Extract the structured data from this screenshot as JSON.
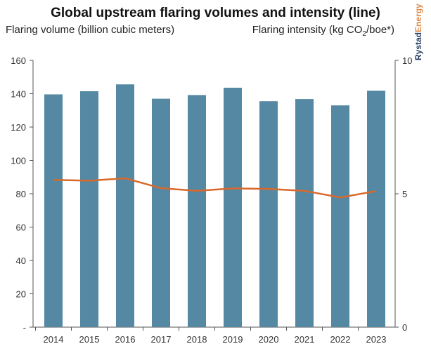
{
  "chart_data": {
    "type": "bar",
    "title": "Global upstream flaring volumes and intensity (line)",
    "ylabel": "Flaring volume (billion cubic meters)",
    "y2label_prefix": "Flaring intensity (kg CO",
    "y2label_sub": "2",
    "y2label_suffix": "/boe*)",
    "categories": [
      "2014",
      "2015",
      "2016",
      "2017",
      "2018",
      "2019",
      "2020",
      "2021",
      "2022",
      "2023"
    ],
    "series": [
      {
        "name": "Flaring volume",
        "type": "bar",
        "axis": "left",
        "color": "#5588a3",
        "values": [
          139.6,
          141.5,
          145.6,
          137,
          139.2,
          143.6,
          135.5,
          136.8,
          133,
          141.8
        ]
      },
      {
        "name": "Flaring intensity",
        "type": "line",
        "axis": "right",
        "color": "#d9692a",
        "values": [
          5.52,
          5.49,
          5.58,
          5.21,
          5.11,
          5.2,
          5.18,
          5.11,
          4.86,
          5.1
        ]
      }
    ],
    "ylim": [
      0,
      160
    ],
    "yticks": [
      "-",
      "20",
      "40",
      "60",
      "80",
      "100",
      "120",
      "140",
      "160"
    ],
    "y2lim": [
      0,
      10
    ],
    "y2ticks": [
      "0",
      "5",
      "10"
    ]
  },
  "logo": {
    "part1": "Rystad",
    "part2": "Energy"
  }
}
